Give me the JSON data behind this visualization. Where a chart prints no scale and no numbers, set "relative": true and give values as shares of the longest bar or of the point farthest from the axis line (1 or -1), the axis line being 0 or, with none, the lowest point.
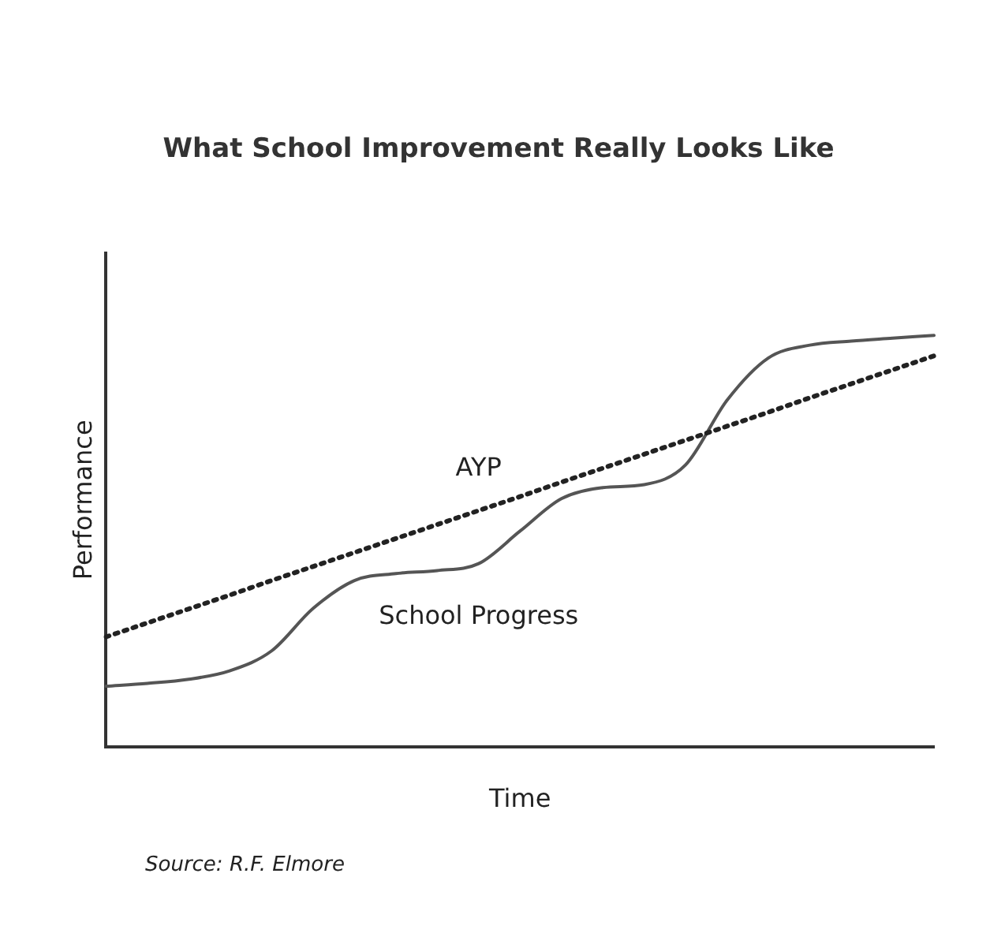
{
  "chart_data": {
    "type": "line",
    "relative": true,
    "title": "What School Improvement Really Looks Like",
    "xlabel": "Time",
    "ylabel": "Performance",
    "annotations": [
      "Source: R.F. Elmore"
    ],
    "categories": [
      null,
      null,
      null,
      null,
      null,
      null,
      null,
      null,
      null,
      null,
      null,
      null,
      null,
      null,
      null,
      null,
      null,
      null,
      null,
      null,
      null
    ],
    "series": [
      {
        "name": "AYP",
        "color": "#222222",
        "line_style": "dotted",
        "values": [
          0.267,
          0.301,
          0.335,
          0.369,
          0.404,
          0.438,
          0.472,
          0.506,
          0.54,
          0.574,
          0.608,
          0.643,
          0.677,
          0.711,
          0.745,
          0.779,
          0.813,
          0.848,
          0.882,
          0.916,
          0.95
        ]
      },
      {
        "name": "School Progress",
        "color": "#555555",
        "line_style": "solid",
        "values": [
          0.147,
          0.154,
          0.164,
          0.185,
          0.233,
          0.336,
          0.404,
          0.421,
          0.428,
          0.445,
          0.524,
          0.603,
          0.63,
          0.637,
          0.685,
          0.842,
          0.945,
          0.976,
          0.986,
          0.993,
          1
        ]
      }
    ],
    "grid": false,
    "legend": false,
    "marker": "none"
  }
}
